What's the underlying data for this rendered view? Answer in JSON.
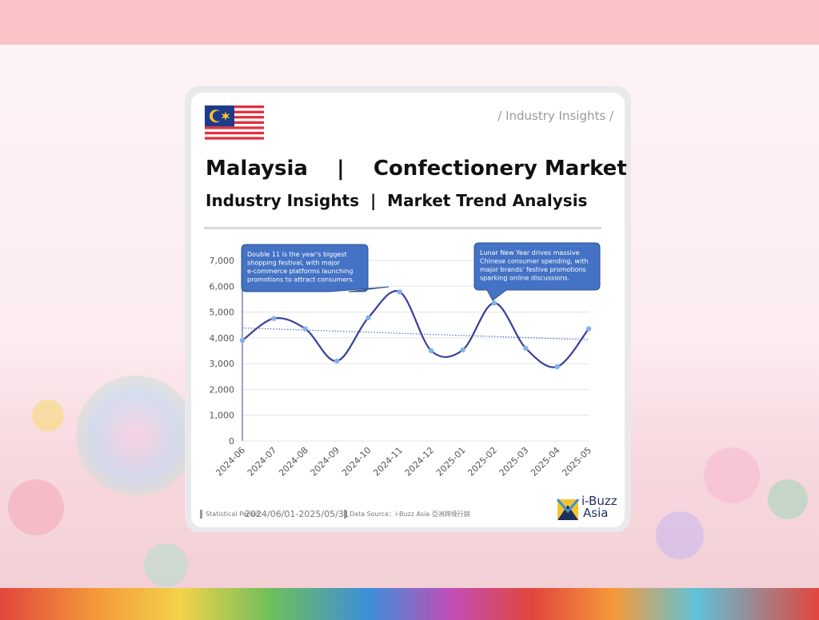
{
  "header": {
    "tag": "/ Industry Insights /",
    "title": "Malaysia    |    Confectionery Market",
    "subtitle": "Industry Insights  |  Market Trend Analysis"
  },
  "footer": {
    "period_label": "Statistical Period：",
    "period_value": "2024/06/01-2025/05/31",
    "source": "Data Source：i-Buzz Asia 亞洲跨境行銷"
  },
  "logo": {
    "line1": "i-Buzz",
    "line2": "Asia"
  },
  "colors": {
    "line": "#3b3f9a",
    "point": "#7fb2e8",
    "trend": "#4a72c4",
    "callout": "#4472c4"
  },
  "chart_data": {
    "type": "line",
    "categories": [
      "2024-06",
      "2024-07",
      "2024-08",
      "2024-09",
      "2024-10",
      "2024-11",
      "2024-12",
      "2025-01",
      "2025-02",
      "2025-03",
      "2025-04",
      "2025-05"
    ],
    "values": [
      3900,
      4750,
      4350,
      3100,
      4780,
      5780,
      3500,
      3530,
      5350,
      3600,
      2880,
      4350
    ],
    "ylim": [
      0,
      7000
    ],
    "yticks": [
      0,
      1000,
      2000,
      3000,
      4000,
      5000,
      6000,
      7000
    ],
    "ytick_labels": [
      "0",
      "1,000",
      "2,000",
      "3,000",
      "4,000",
      "5,000",
      "6,000",
      "7,000"
    ],
    "trendline": {
      "type": "linear",
      "style": "dotted"
    },
    "grid": true,
    "annotations": [
      {
        "category": "2024-11",
        "text": "Double 11 is the year's biggest shopping festival, with major e-commerce platforms launching promotions to attract consumers."
      },
      {
        "category": "2025-02",
        "text": "Lunar New Year drives massive Chinese consumer spending, with major brands' festive promotions sparking online discussions."
      }
    ]
  }
}
